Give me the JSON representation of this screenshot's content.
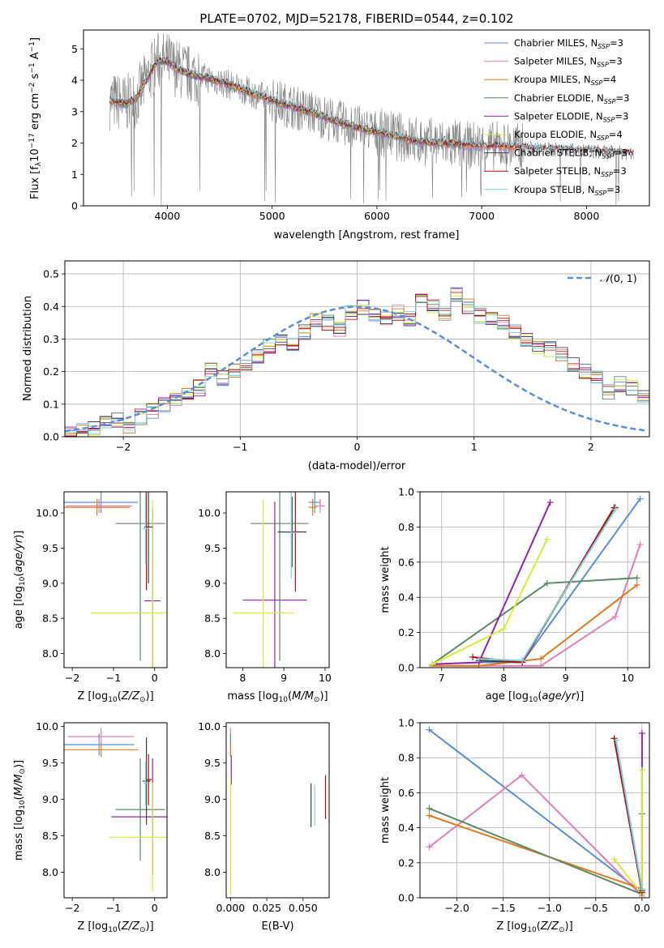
{
  "title": "PLATE=0702, MJD=52178, FIBERID=0544, z=0.102",
  "colors": {
    "Chabrier MILES": "#5b8fd6",
    "Salpeter MILES": "#e07fb6",
    "Kroupa MILES": "#e07a1f",
    "Chabrier ELODIE": "#5a8a64",
    "Salpeter ELODIE": "#8e24aa",
    "Kroupa ELODIE": "#d4ec3c",
    "Chabrier STELIB": "#404040",
    "Salpeter STELIB": "#b01010",
    "Kroupa STELIB": "#7fd1dd",
    "data": "#808080",
    "normal": "#5b8fd6"
  },
  "chart_data": [
    {
      "type": "line",
      "id": "spectrum",
      "xlabel": "wavelength [Angstrom, rest frame]",
      "ylabel_main": "Flux [f",
      "ylabel_sub": "λ",
      "ylabel_mid": "10",
      "ylabel_sup1": "−17",
      "ylabel_tail": " erg cm",
      "ylabel_sup2": "−2",
      "ylabel_s": " s",
      "ylabel_sup3": "−1",
      "ylabel_a": " A",
      "ylabel_sup4": "−1",
      "ylabel_end": "]",
      "xlim": [
        3200,
        8600
      ],
      "ylim": [
        0,
        5.6
      ],
      "xticks": [
        "4000",
        "5000",
        "6000",
        "7000",
        "8000"
      ],
      "xtick_values": [
        4000,
        5000,
        6000,
        7000,
        8000
      ],
      "yticks": [
        "0",
        "1",
        "2",
        "3",
        "4",
        "5"
      ],
      "ytick_values": [
        0,
        1,
        2,
        3,
        4,
        5
      ],
      "continuum": {
        "x": [
          3450,
          3600,
          3700,
          3800,
          3900,
          4000,
          4100,
          4200,
          4400,
          4600,
          4800,
          5000,
          5200,
          5400,
          5600,
          5800,
          6000,
          6200,
          6400,
          6600,
          6800,
          7000,
          7200,
          7400,
          7600,
          7800,
          8000,
          8200,
          8400
        ],
        "y": [
          3.35,
          3.25,
          3.4,
          4.0,
          4.6,
          4.6,
          4.35,
          4.2,
          4.05,
          3.85,
          3.6,
          3.35,
          3.15,
          2.95,
          2.7,
          2.5,
          2.35,
          2.2,
          2.05,
          2.0,
          1.95,
          1.9,
          1.9,
          1.85,
          1.8,
          1.78,
          1.75,
          1.7,
          1.68
        ]
      },
      "legend": [
        {
          "label": "Chabrier MILES, N",
          "sub": "SSP",
          "tail": "=3",
          "key": "Chabrier MILES"
        },
        {
          "label": "Salpeter MILES, N",
          "sub": "SSP",
          "tail": "=3",
          "key": "Salpeter MILES"
        },
        {
          "label": "Kroupa MILES, N",
          "sub": "SSP",
          "tail": "=4",
          "key": "Kroupa MILES"
        },
        {
          "label": "Chabrier ELODIE, N",
          "sub": "SSP",
          "tail": "=3",
          "key": "Chabrier ELODIE"
        },
        {
          "label": "Salpeter ELODIE, N",
          "sub": "SSP",
          "tail": "=3",
          "key": "Salpeter ELODIE"
        },
        {
          "label": "Kroupa ELODIE, N",
          "sub": "SSP",
          "tail": "=4",
          "key": "Kroupa ELODIE"
        },
        {
          "label": "Chabrier STELIB, N",
          "sub": "SSP",
          "tail": "=3",
          "key": "Chabrier STELIB"
        },
        {
          "label": "Salpeter STELIB, N",
          "sub": "SSP",
          "tail": "=3",
          "key": "Salpeter STELIB"
        },
        {
          "label": "Kroupa STELIB, N",
          "sub": "SSP",
          "tail": "=3",
          "key": "Kroupa STELIB"
        }
      ]
    },
    {
      "type": "histogram",
      "id": "residuals",
      "xlabel": "(data-model)/error",
      "ylabel": "Normed distribution",
      "xlim": [
        -2.5,
        2.5
      ],
      "ylim": [
        0,
        0.54
      ],
      "xticks": [
        "−2",
        "−1",
        "0",
        "1",
        "2"
      ],
      "xtick_values": [
        -2,
        -1,
        0,
        1,
        2
      ],
      "yticks": [
        "0.0",
        "0.1",
        "0.2",
        "0.3",
        "0.4",
        "0.5"
      ],
      "ytick_values": [
        0,
        0.1,
        0.2,
        0.3,
        0.4,
        0.5
      ],
      "legend": {
        "pre": "𝒩",
        "label": "(0, 1)"
      },
      "bin_width": 0.1,
      "bins_start": -2.5,
      "base_values": [
        0.02,
        0.02,
        0.03,
        0.04,
        0.05,
        0.03,
        0.06,
        0.08,
        0.1,
        0.11,
        0.14,
        0.15,
        0.21,
        0.18,
        0.2,
        0.23,
        0.25,
        0.28,
        0.3,
        0.28,
        0.32,
        0.36,
        0.35,
        0.33,
        0.38,
        0.4,
        0.37,
        0.36,
        0.38,
        0.36,
        0.42,
        0.4,
        0.38,
        0.44,
        0.4,
        0.37,
        0.36,
        0.35,
        0.32,
        0.3,
        0.28,
        0.27,
        0.25,
        0.22,
        0.2,
        0.18,
        0.14,
        0.16,
        0.15,
        0.12,
        0.13,
        0.1,
        0.08,
        0.07,
        0.06,
        0.05,
        0.04,
        0.03,
        0.03,
        0.02
      ]
    },
    {
      "type": "errorbar",
      "id": "age-z",
      "xlabel_pre": "Z [log",
      "xlabel_sub": "10",
      "xlabel_post": "(Z/Z",
      "xlabel_sub2": "⊙",
      "xlabel_end": ")]",
      "ylabel_pre": "age  [log",
      "ylabel_sub": "10",
      "ylabel_post": "(age/yr)]",
      "xlim": [
        -2.2,
        0.3
      ],
      "ylim": [
        7.8,
        10.3
      ],
      "xticks": [
        "−2",
        "−1",
        "0"
      ],
      "xtick_values": [
        -2,
        -1,
        0
      ],
      "yticks": [
        "8.0",
        "8.5",
        "9.0",
        "9.5",
        "10.0"
      ],
      "ytick_values": [
        8.0,
        8.5,
        9.0,
        9.5,
        10.0
      ],
      "points": [
        {
          "key": "Chabrier MILES",
          "x": -1.3,
          "y": 10.15,
          "xerr": 0.9,
          "yerr": 0.15
        },
        {
          "key": "Salpeter MILES",
          "x": -1.35,
          "y": 10.1,
          "xerr": 0.8,
          "yerr": 0.1
        },
        {
          "key": "Kroupa MILES",
          "x": -1.4,
          "y": 10.08,
          "xerr": 0.8,
          "yerr": 0.12
        },
        {
          "key": "Chabrier ELODIE",
          "x": -0.35,
          "y": 9.85,
          "xerr": 0.6,
          "yerr": 1.95
        },
        {
          "key": "Salpeter ELODIE",
          "x": -0.05,
          "y": 8.75,
          "xerr": 0.2,
          "yerr": 1.3
        },
        {
          "key": "Kroupa ELODIE",
          "x": -0.05,
          "y": 8.58,
          "xerr": 1.5,
          "yerr": 1.6
        },
        {
          "key": "Chabrier STELIB",
          "x": -0.15,
          "y": 9.8,
          "xerr": 0.1,
          "yerr": 0.8
        },
        {
          "key": "Salpeter STELIB",
          "x": -0.2,
          "y": 9.8,
          "xerr": 0.05,
          "yerr": 0.9
        },
        {
          "key": "Kroupa STELIB",
          "x": -0.22,
          "y": 9.78,
          "xerr": 0.08,
          "yerr": 0.5
        }
      ]
    },
    {
      "type": "errorbar",
      "id": "age-mass",
      "xlabel_pre": "mass [log",
      "xlabel_sub": "10",
      "xlabel_post": "(M/M",
      "xlabel_sub2": "⊙",
      "xlabel_end": ")]",
      "xlim": [
        7.6,
        10.1
      ],
      "ylim": [
        7.8,
        10.3
      ],
      "xticks": [
        "8",
        "9",
        "10"
      ],
      "xtick_values": [
        8,
        9,
        10
      ],
      "yticks": [
        "8.0",
        "8.5",
        "9.0",
        "9.5",
        "10.0"
      ],
      "ytick_values": [
        8.0,
        8.5,
        9.0,
        9.5,
        10.0
      ],
      "points": [
        {
          "key": "Chabrier MILES",
          "x": 9.75,
          "y": 10.15,
          "xerr": 0.15,
          "yerr": 0.15
        },
        {
          "key": "Salpeter MILES",
          "x": 9.88,
          "y": 10.1,
          "xerr": 0.12,
          "yerr": 0.1
        },
        {
          "key": "Kroupa MILES",
          "x": 9.7,
          "y": 10.08,
          "xerr": 0.1,
          "yerr": 0.12
        },
        {
          "key": "Chabrier ELODIE",
          "x": 8.9,
          "y": 9.85,
          "xerr": 0.7,
          "yerr": 1.95
        },
        {
          "key": "Salpeter ELODIE",
          "x": 8.78,
          "y": 8.76,
          "xerr": 0.78,
          "yerr": 1.4
        },
        {
          "key": "Kroupa ELODIE",
          "x": 8.5,
          "y": 8.58,
          "xerr": 0.75,
          "yerr": 1.6
        },
        {
          "key": "Chabrier STELIB",
          "x": 9.2,
          "y": 9.73,
          "xerr": 0.35,
          "yerr": 0.5
        },
        {
          "key": "Salpeter STELIB",
          "x": 9.28,
          "y": 9.73,
          "xerr": 0.08,
          "yerr": 0.85
        },
        {
          "key": "Kroupa STELIB",
          "x": 9.18,
          "y": 9.72,
          "xerr": 0.15,
          "yerr": 0.65
        }
      ]
    },
    {
      "type": "line",
      "id": "weight-age",
      "xlabel_pre": "age  [log",
      "xlabel_sub": "10",
      "xlabel_post": "(age/yr)]",
      "ylabel": "mass weight",
      "xlim": [
        6.65,
        10.35
      ],
      "ylim": [
        0,
        1.0
      ],
      "xticks": [
        "7",
        "8",
        "9",
        "10"
      ],
      "xtick_values": [
        7,
        8,
        9,
        10
      ],
      "yticks": [
        "0.0",
        "0.2",
        "0.4",
        "0.6",
        "0.8",
        "1.0"
      ],
      "ytick_values": [
        0,
        0.2,
        0.4,
        0.6,
        0.8,
        1.0
      ],
      "series": [
        {
          "key": "Chabrier MILES",
          "x": [
            7.6,
            8.3,
            10.2
          ],
          "y": [
            0.03,
            0.03,
            0.96
          ]
        },
        {
          "key": "Salpeter MILES",
          "x": [
            6.85,
            8.6,
            9.8,
            10.2
          ],
          "y": [
            0.01,
            0.01,
            0.29,
            0.7
          ]
        },
        {
          "key": "Kroupa MILES",
          "x": [
            6.85,
            7.6,
            8.6,
            10.15
          ],
          "y": [
            0.01,
            0.01,
            0.05,
            0.47
          ]
        },
        {
          "key": "Chabrier ELODIE",
          "x": [
            6.85,
            8.7,
            10.15
          ],
          "y": [
            0.02,
            0.48,
            0.51
          ]
        },
        {
          "key": "Salpeter ELODIE",
          "x": [
            6.85,
            7.6,
            8.75
          ],
          "y": [
            0.02,
            0.03,
            0.94
          ]
        },
        {
          "key": "Kroupa ELODIE",
          "x": [
            6.85,
            8.0,
            8.7
          ],
          "y": [
            0.02,
            0.22,
            0.73
          ]
        },
        {
          "key": "Chabrier STELIB",
          "x": [
            7.6,
            8.3,
            9.8
          ],
          "y": [
            0.04,
            0.03,
            0.91
          ]
        },
        {
          "key": "Salpeter STELIB",
          "x": [
            7.5,
            8.3,
            9.78
          ],
          "y": [
            0.06,
            0.03,
            0.91
          ]
        },
        {
          "key": "Kroupa STELIB",
          "x": [
            7.6,
            8.3,
            9.8
          ],
          "y": [
            0.05,
            0.04,
            0.9
          ]
        }
      ]
    },
    {
      "type": "errorbar",
      "id": "mass-z",
      "xlabel_pre": "Z [log",
      "xlabel_sub": "10",
      "xlabel_post": "(Z/Z",
      "xlabel_sub2": "⊙",
      "xlabel_end": ")]",
      "ylabel_pre": "mass [log",
      "ylabel_sub": "10",
      "ylabel_post": "(M/M",
      "ylabel_sub2": "⊙",
      "ylabel_end": ")]",
      "xlim": [
        -2.2,
        0.3
      ],
      "ylim": [
        7.65,
        10.05
      ],
      "xticks": [
        "−2",
        "−1",
        "0"
      ],
      "xtick_values": [
        -2,
        -1,
        0
      ],
      "yticks": [
        "8.0",
        "8.5",
        "9.0",
        "9.5",
        "10.0"
      ],
      "ytick_values": [
        8.0,
        8.5,
        9.0,
        9.5,
        10.0
      ],
      "points": [
        {
          "key": "Salpeter MILES",
          "x": -1.3,
          "y": 9.86,
          "xerr": 0.8,
          "yerr": 0.12
        },
        {
          "key": "Chabrier MILES",
          "x": -1.35,
          "y": 9.75,
          "xerr": 0.85,
          "yerr": 0.15
        },
        {
          "key": "Kroupa MILES",
          "x": -1.3,
          "y": 9.68,
          "xerr": 0.9,
          "yerr": 0.1
        },
        {
          "key": "Chabrier ELODIE",
          "x": -0.35,
          "y": 8.86,
          "xerr": 0.6,
          "yerr": 0.7
        },
        {
          "key": "Salpeter ELODIE",
          "x": -0.05,
          "y": 8.76,
          "xerr": 1.0,
          "yerr": 0.8
        },
        {
          "key": "Kroupa ELODIE",
          "x": -0.05,
          "y": 8.48,
          "xerr": 1.05,
          "yerr": 0.75
        },
        {
          "key": "Chabrier STELIB",
          "x": -0.2,
          "y": 9.25,
          "xerr": 0.1,
          "yerr": 0.6
        },
        {
          "key": "Salpeter STELIB",
          "x": -0.15,
          "y": 9.27,
          "xerr": 0.08,
          "yerr": 0.35
        },
        {
          "key": "Kroupa STELIB",
          "x": -0.22,
          "y": 9.22,
          "xerr": 0.05,
          "yerr": 0.3
        }
      ]
    },
    {
      "type": "errorbar",
      "id": "mass-ebv",
      "xlabel": "E(B-V)",
      "xlim": [
        -0.003,
        0.068
      ],
      "ylim": [
        7.65,
        10.05
      ],
      "xticks": [
        "0.000",
        "0.025",
        "0.050"
      ],
      "xtick_values": [
        0,
        0.025,
        0.05
      ],
      "yticks": [
        "8.0",
        "8.5",
        "9.0",
        "9.5",
        "10.0"
      ],
      "ytick_values": [
        8.0,
        8.5,
        9.0,
        9.5,
        10.0
      ],
      "points": [
        {
          "key": "Salpeter MILES",
          "x": 0.0,
          "y": 9.86,
          "xerr": 0.0,
          "yerr": 0.12
        },
        {
          "key": "Chabrier MILES",
          "x": 0.0,
          "y": 9.75,
          "xerr": 0.0,
          "yerr": 0.15
        },
        {
          "key": "Kroupa MILES",
          "x": 0.0,
          "y": 9.68,
          "xerr": 0.0,
          "yerr": 0.1
        },
        {
          "key": "Salpeter ELODIE",
          "x": 0.0005,
          "y": 9.4,
          "xerr": 0.0,
          "yerr": 0.2
        },
        {
          "key": "Kroupa ELODIE",
          "x": 0.0,
          "y": 8.5,
          "xerr": 0.0,
          "yerr": 0.8
        },
        {
          "key": "Chabrier STELIB",
          "x": 0.0555,
          "y": 8.92,
          "xerr": 0.0,
          "yerr": 0.3
        },
        {
          "key": "Kroupa STELIB",
          "x": 0.058,
          "y": 8.92,
          "xerr": 0.0,
          "yerr": 0.28
        },
        {
          "key": "Salpeter STELIB",
          "x": 0.0655,
          "y": 9.03,
          "xerr": 0.0,
          "yerr": 0.3
        }
      ]
    },
    {
      "type": "line",
      "id": "weight-z",
      "xlabel_pre": "Z [log",
      "xlabel_sub": "10",
      "xlabel_post": "(Z/Z",
      "xlabel_sub2": "⊙",
      "xlabel_end": ")]",
      "ylabel": "mass weight",
      "xlim": [
        -2.4,
        0.08
      ],
      "ylim": [
        0,
        1.0
      ],
      "xticks": [
        "−2.0",
        "−1.5",
        "−1.0",
        "−0.5",
        "0.0"
      ],
      "xtick_values": [
        -2.0,
        -1.5,
        -1.0,
        -0.5,
        0.0
      ],
      "yticks": [
        "0.0",
        "0.2",
        "0.4",
        "0.6",
        "0.8",
        "1.0"
      ],
      "ytick_values": [
        0,
        0.2,
        0.4,
        0.6,
        0.8,
        1.0
      ],
      "series": [
        {
          "key": "Chabrier MILES",
          "x": [
            -2.3,
            0.0
          ],
          "y": [
            0.96,
            0.03
          ]
        },
        {
          "key": "Salpeter MILES",
          "x": [
            -2.3,
            -1.3,
            0.0
          ],
          "y": [
            0.29,
            0.7,
            0.01
          ]
        },
        {
          "key": "Kroupa MILES",
          "x": [
            -2.3,
            0.0
          ],
          "y": [
            0.47,
            0.05
          ]
        },
        {
          "key": "Chabrier ELODIE",
          "x": [
            -2.3,
            0.0,
            0.0
          ],
          "y": [
            0.51,
            0.02,
            0.48
          ]
        },
        {
          "key": "Salpeter ELODIE",
          "x": [
            0.0,
            0.0
          ],
          "y": [
            0.94,
            0.03
          ]
        },
        {
          "key": "Kroupa ELODIE",
          "x": [
            -0.3,
            0.0,
            0.0
          ],
          "y": [
            0.22,
            0.02,
            0.73
          ]
        },
        {
          "key": "Chabrier STELIB",
          "x": [
            -0.3,
            0.0
          ],
          "y": [
            0.91,
            0.04
          ]
        },
        {
          "key": "Salpeter STELIB",
          "x": [
            -0.3,
            0.0
          ],
          "y": [
            0.91,
            0.03
          ]
        },
        {
          "key": "Kroupa STELIB",
          "x": [
            -0.28,
            0.0
          ],
          "y": [
            0.9,
            0.05
          ]
        }
      ]
    }
  ]
}
